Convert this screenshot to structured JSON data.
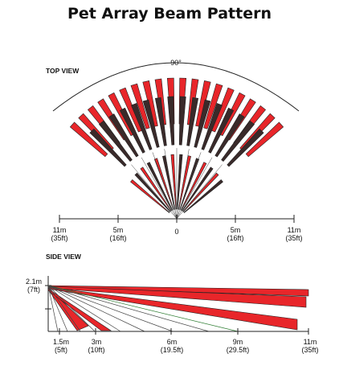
{
  "title": "Pet Array Beam Pattern",
  "top_view": {
    "heading": "TOP VIEW",
    "angle_label": "90°",
    "ticks": [
      {
        "m": "11m",
        "ft": "(35ft)"
      },
      {
        "m": "5m",
        "ft": "(16ft)"
      },
      {
        "m": "0",
        "ft": ""
      },
      {
        "m": "5m",
        "ft": "(16ft)"
      },
      {
        "m": "11m",
        "ft": "(35ft)"
      }
    ]
  },
  "side_view": {
    "heading": "SIDE VIEW",
    "height_m": "2.1m",
    "height_ft": "(7ft)",
    "ticks": [
      {
        "m": "1.5m",
        "ft": "(5ft)"
      },
      {
        "m": "3m",
        "ft": "(10ft)"
      },
      {
        "m": "6m",
        "ft": "(19.5ft)"
      },
      {
        "m": "9m",
        "ft": "(29.5ft)"
      },
      {
        "m": "11m",
        "ft": "(35ft)"
      }
    ]
  },
  "colors": {
    "beam_red": "#e8262a",
    "beam_dark": "#3a2a2a",
    "beam_line_green": "#2e7d32",
    "axis": "#222222"
  }
}
